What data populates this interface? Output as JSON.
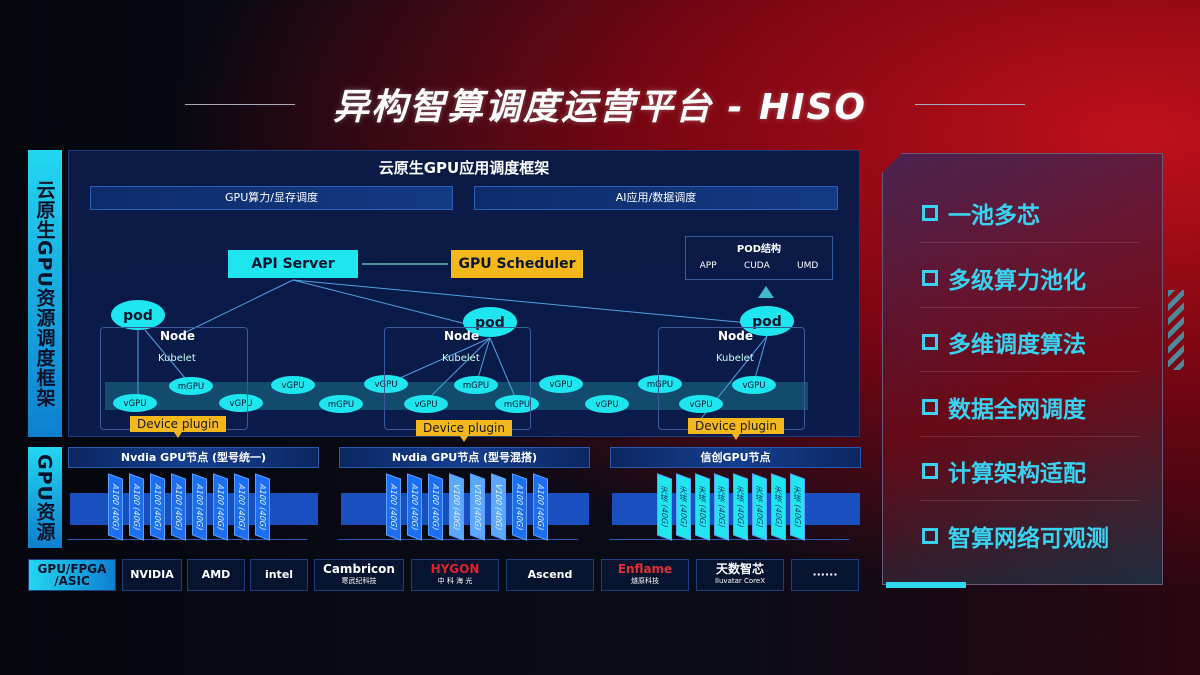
{
  "title": "异构智算调度运营平台 - HISO",
  "side_labels": {
    "framework": "云原生GPU资源调度框架",
    "resources": "GPU资源",
    "vendors": "GPU/FPGA /ASIC"
  },
  "framework": {
    "header": "云原生GPU应用调度框架",
    "sub_boxes": [
      "GPU算力/显存调度",
      "AI应用/数据调度"
    ],
    "api_server": "API Server",
    "gpu_scheduler": "GPU Scheduler",
    "pod_structure": {
      "title": "POD结构",
      "items": [
        "APP",
        "CUDA",
        "UMD"
      ]
    },
    "node_label": "Node",
    "kubelet_label": "Kubelet",
    "pod_label": "pod",
    "device_plugin": "Device plugin",
    "gpu_units": [
      "vGPU",
      "mGPU",
      "vGPU",
      "vGPU",
      "mGPU",
      "vGPU",
      "vGPU",
      "mGPU",
      "mGPU",
      "vGPU",
      "vGPU",
      "mGPU",
      "vGPU",
      "vGPU"
    ],
    "colors": {
      "cyan": "#1ee6ee",
      "orange": "#f4b81c"
    }
  },
  "gpu_nodes": [
    {
      "title": "Nvdia GPU节点 (型号统一)",
      "chips": [
        "A100 (40G)",
        "A100 (40G)",
        "A100 (40G)",
        "A100 (40G)",
        "A100 (40G)",
        "A100 (40G)",
        "A100 (40G)",
        "A100 (40G)"
      ]
    },
    {
      "title": "Nvdia GPU节点 (型号混搭)",
      "chips": [
        "A100 (40G)",
        "A100 (40G)",
        "A100 (40G)",
        "V100 (40G)",
        "V100 (40G)",
        "V100 (40G)",
        "A100 (40G)",
        "A100 (40G)"
      ]
    },
    {
      "title": "信创GPU节点",
      "chips": [
        "天垓 (40G)",
        "天垓 (40G)",
        "天垓 (40G)",
        "天垓 (40G)",
        "天垓 (40G)",
        "天垓 (40G)",
        "天垓 (40G)",
        "天垓 (40G)"
      ]
    }
  ],
  "vendors": [
    {
      "name": "NVIDIA",
      "sub": ""
    },
    {
      "name": "AMD",
      "sub": ""
    },
    {
      "name": "intel",
      "sub": ""
    },
    {
      "name": "Cambricon",
      "sub": "寒武纪科技"
    },
    {
      "name": "HYGON",
      "sub": "中 科 海 光"
    },
    {
      "name": "Ascend",
      "sub": ""
    },
    {
      "name": "Enflame",
      "sub": "燧原科技"
    },
    {
      "name": "天数智芯",
      "sub": "Iluvatar CoreX"
    },
    {
      "name": "······",
      "sub": ""
    }
  ],
  "features": [
    "一池多芯",
    "多级算力池化",
    "多维调度算法",
    "数据全网调度",
    "计算架构适配",
    "智算网络可观测"
  ]
}
